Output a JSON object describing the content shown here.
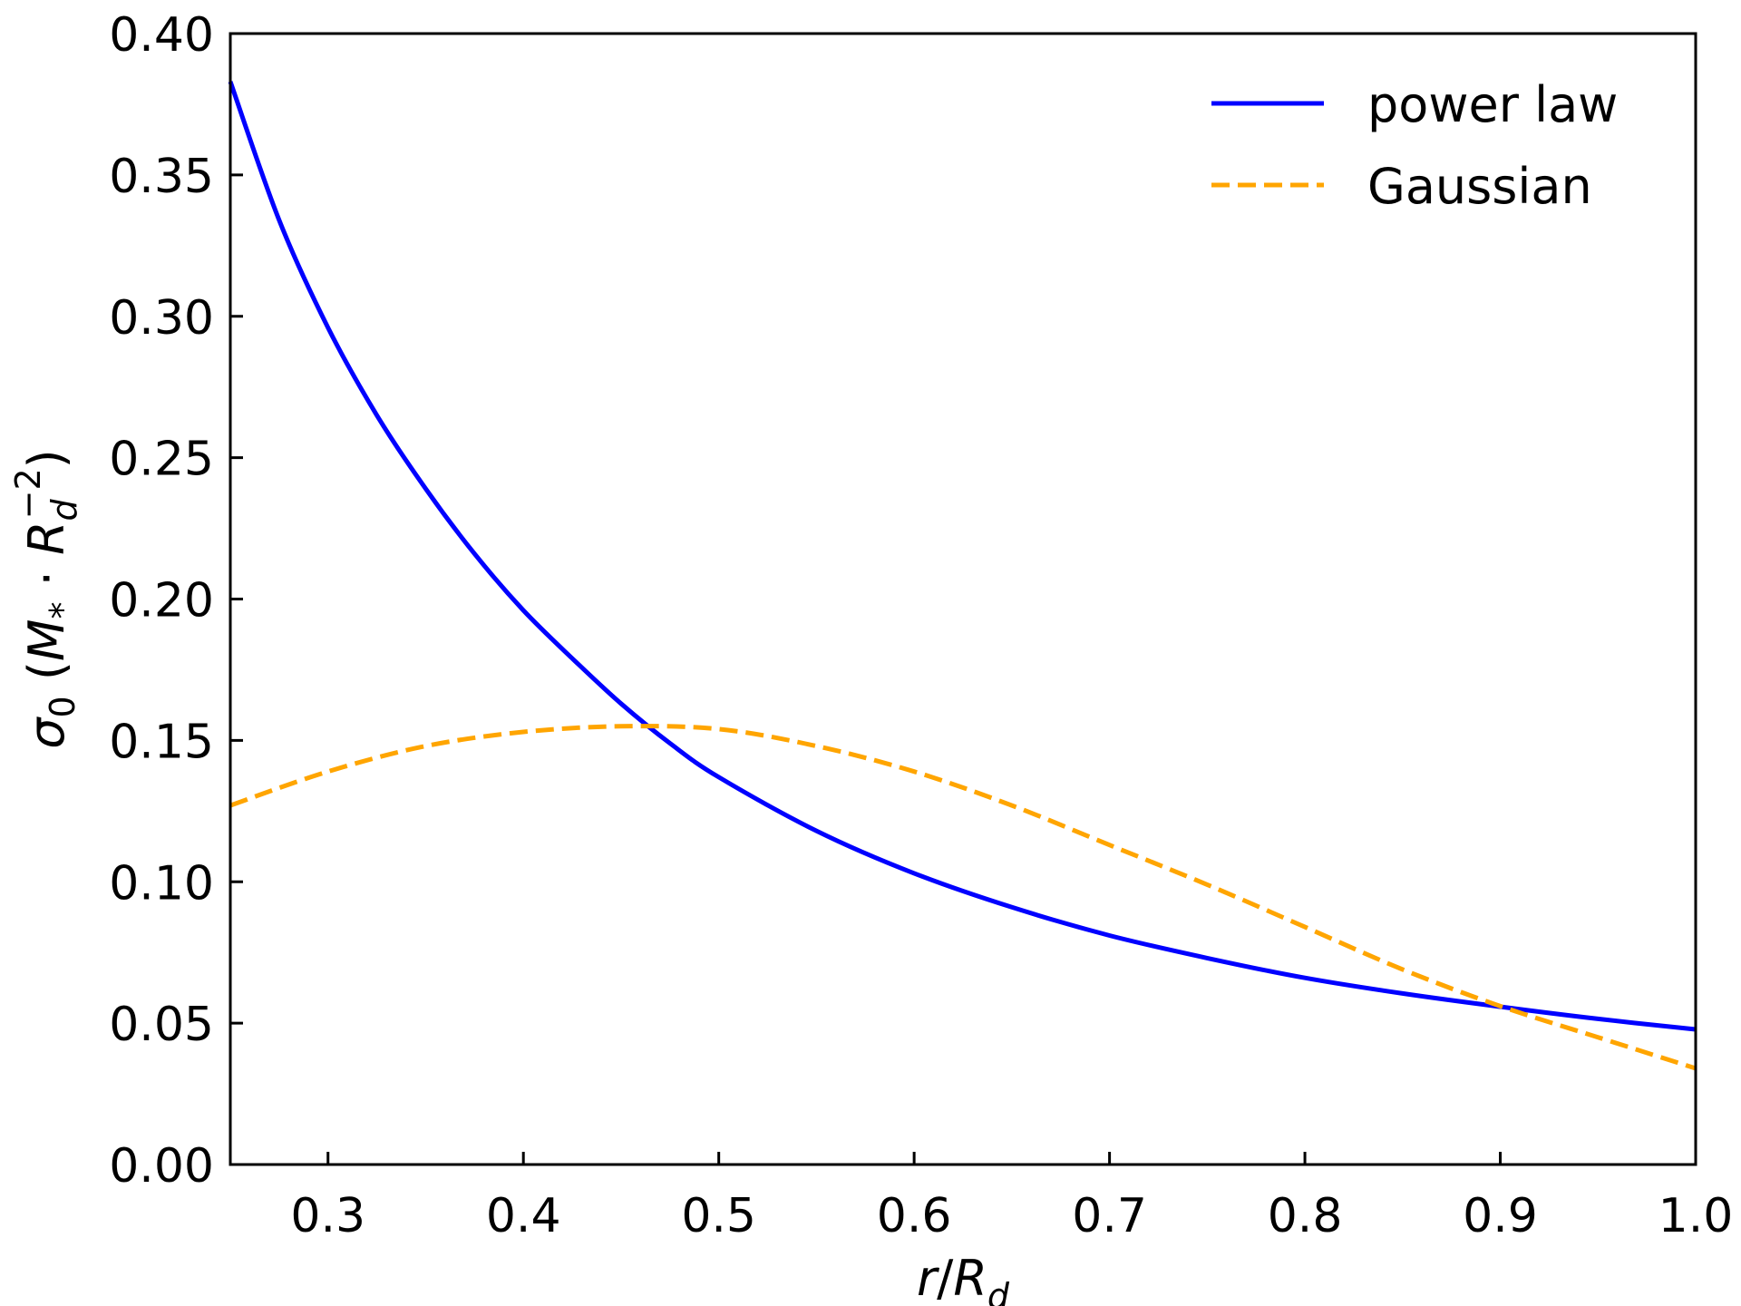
{
  "chart_data": {
    "type": "line",
    "title": "",
    "xlabel": {
      "main": "r",
      "sep": "/",
      "sym": "R",
      "sub": "d"
    },
    "ylabel": {
      "pre": "σ",
      "pre_sub": "0",
      "open": " (",
      "m": "M",
      "m_sub": "*",
      "dot": " · ",
      "r": "R",
      "r_sub": "d",
      "r_sup": "−2",
      "close": ")"
    },
    "xlim": [
      0.25,
      1.0
    ],
    "ylim": [
      0.0,
      0.4
    ],
    "xticks": [
      "0.3",
      "0.4",
      "0.5",
      "0.6",
      "0.7",
      "0.8",
      "0.9",
      "1.0"
    ],
    "yticks": [
      "0.00",
      "0.05",
      "0.10",
      "0.15",
      "0.20",
      "0.25",
      "0.30",
      "0.35",
      "0.40"
    ],
    "grid": false,
    "legend_position": "top-right",
    "series": [
      {
        "name": "power law",
        "color": "#0000ff",
        "style": "solid",
        "x": [
          0.25,
          0.275,
          0.3,
          0.325,
          0.35,
          0.375,
          0.4,
          0.425,
          0.45,
          0.475,
          0.5,
          0.55,
          0.6,
          0.65,
          0.7,
          0.75,
          0.8,
          0.85,
          0.9,
          0.95,
          1.0
        ],
        "y": [
          0.383,
          0.334,
          0.296,
          0.265,
          0.239,
          0.216,
          0.196,
          0.179,
          0.163,
          0.149,
          0.137,
          0.118,
          0.103,
          0.091,
          0.081,
          0.073,
          0.066,
          0.0605,
          0.0558,
          0.0515,
          0.0478
        ]
      },
      {
        "name": "Gaussian",
        "color": "#ffa500",
        "style": "dashed",
        "x": [
          0.25,
          0.3,
          0.35,
          0.4,
          0.45,
          0.5,
          0.55,
          0.6,
          0.65,
          0.7,
          0.75,
          0.8,
          0.85,
          0.9,
          0.95,
          1.0
        ],
        "y": [
          0.127,
          0.139,
          0.148,
          0.153,
          0.155,
          0.154,
          0.148,
          0.139,
          0.127,
          0.113,
          0.099,
          0.084,
          0.069,
          0.056,
          0.045,
          0.034
        ]
      }
    ]
  }
}
